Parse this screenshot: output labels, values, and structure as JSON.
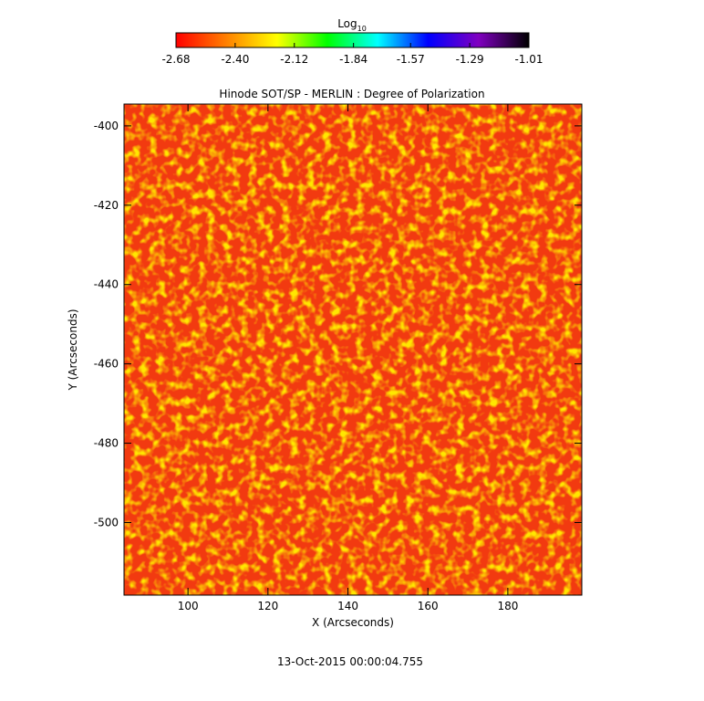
{
  "chart_data": {
    "type": "heatmap",
    "title": "Hinode SOT/SP - MERLIN : Degree of Polarization",
    "x_label": "X (Arcseconds)",
    "y_label": "Y (Arcseconds)",
    "footer": "13-Oct-2015 00:00:04.755",
    "xlim": [
      84,
      198.5
    ],
    "xticks": [
      100,
      120,
      140,
      160,
      180
    ],
    "ylim": [
      -518.3,
      -394.5
    ],
    "yticks": [
      -400,
      -420,
      -440,
      -460,
      -480,
      -500
    ],
    "colorbar": {
      "label": "Log",
      "label_subscript": "10",
      "clim": [
        -2.68,
        -1.01
      ],
      "ticks": [
        -2.68,
        {
          "value": -2.4,
          "label": "-2.40"
        },
        -2.12,
        -1.84,
        -1.57,
        -1.29,
        -1.01
      ],
      "colormap": [
        "#ff0000",
        "#ff8000",
        "#ffff00",
        "#00ff00",
        "#00ffff",
        "#0000ff",
        "#8000c0",
        "#000000"
      ]
    }
  }
}
